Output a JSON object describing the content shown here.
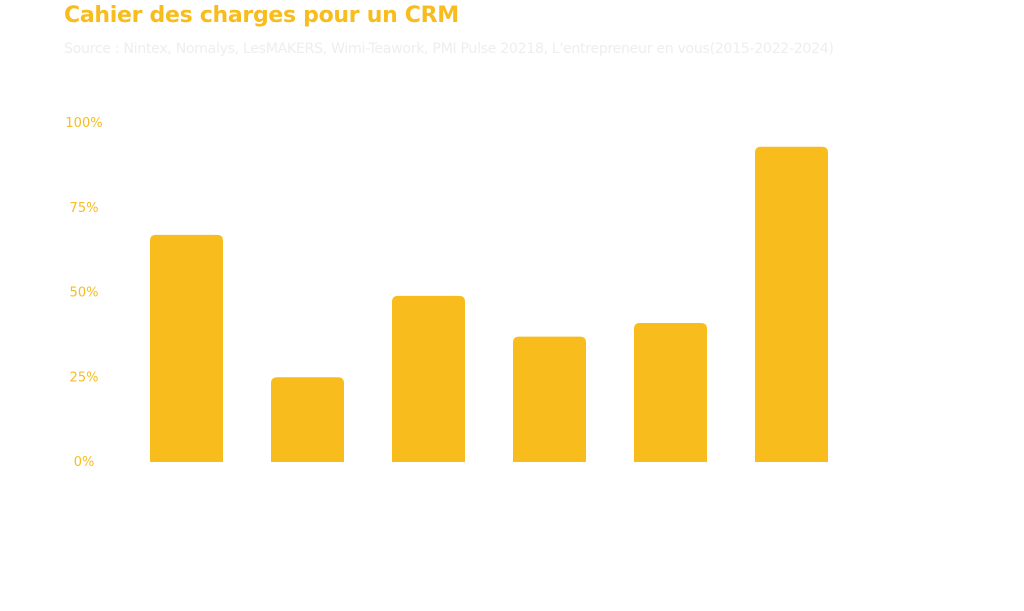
{
  "header": {
    "title": "Cahier des charges pour un CRM",
    "subtitle": "Source : Nintex, Nomalys, LesMAKERS, Wimi-Teawork, PMI Pulse 20218, L'entrepreneur en vous(2015-2022-2024)"
  },
  "colors": {
    "accent": "#F8BC1D",
    "subtitle": "#EEEEEE",
    "background": "#FFFFFF"
  },
  "chart_data": {
    "type": "bar",
    "title": "Cahier des charges pour un CRM",
    "subtitle": "Source : Nintex, Nomalys, LesMAKERS, Wimi-Teawork, PMI Pulse 20218, L'entrepreneur en vous(2015-2022-2024)",
    "categories": [
      "",
      "",
      "",
      "",
      "",
      ""
    ],
    "values": [
      67,
      25,
      49,
      37,
      41,
      93
    ],
    "ylim": [
      0,
      100
    ],
    "yticks": [
      0,
      25,
      50,
      75,
      100
    ],
    "ytick_labels": [
      "0%",
      "25%",
      "50%",
      "75%",
      "100%"
    ],
    "xlabel": "",
    "ylabel": "",
    "grid": false,
    "legend": "none"
  }
}
